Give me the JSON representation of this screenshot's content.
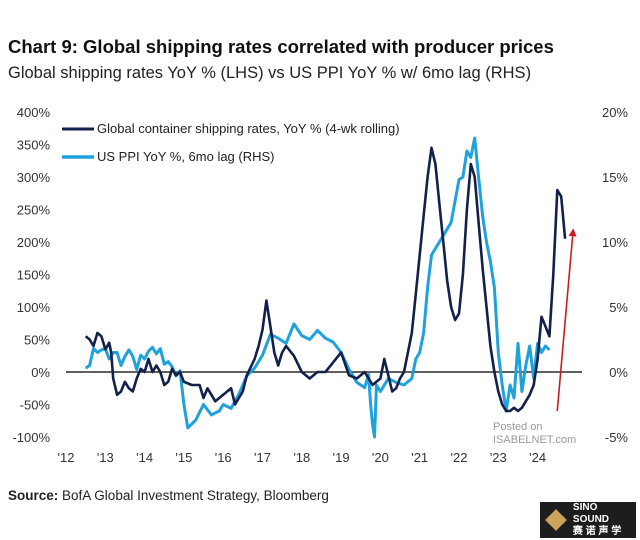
{
  "title": "Chart 9: Global shipping rates correlated with producer prices",
  "subtitle": "Global shipping rates YoY % (LHS) vs US PPI YoY % w/ 6mo lag (RHS)",
  "source_label": "Source:",
  "source_text": "BofA Global Investment Strategy, Bloomberg",
  "watermark_line1": "Posted on",
  "watermark_line2": "ISABELNET.com",
  "logo_text_1": "SINO SOUND",
  "logo_text_2": "赛 诺 声 学",
  "colors": {
    "shipping": "#13204a",
    "ppi": "#1fa2dc",
    "arrow": "#c81e1e",
    "zero": "#000000"
  },
  "chart_data": {
    "type": "line",
    "left_axis": {
      "min": -100,
      "max": 400,
      "ticks": [
        "400%",
        "350%",
        "300%",
        "250%",
        "200%",
        "150%",
        "100%",
        "50%",
        "0%",
        "-50%",
        "-100%"
      ]
    },
    "right_axis": {
      "min": -5,
      "max": 20,
      "ticks": [
        "20%",
        "15%",
        "10%",
        "5%",
        "0%",
        "-5%"
      ]
    },
    "x_axis": {
      "min": 2012,
      "max": 2024.8,
      "ticks": [
        "'12",
        "'13",
        "'14",
        "'15",
        "'16",
        "'17",
        "'18",
        "'19",
        "'20",
        "'21",
        "'22",
        "'23",
        "'24"
      ]
    },
    "series": [
      {
        "name": "Global container shipping rates, YoY % (4-wk rolling)",
        "axis": "left",
        "x": [
          2012.5,
          2012.6,
          2012.7,
          2012.8,
          2012.9,
          2013.0,
          2013.1,
          2013.15,
          2013.2,
          2013.3,
          2013.4,
          2013.5,
          2013.6,
          2013.7,
          2013.8,
          2013.9,
          2014.0,
          2014.1,
          2014.2,
          2014.3,
          2014.4,
          2014.5,
          2014.6,
          2014.7,
          2014.8,
          2014.9,
          2015.0,
          2015.2,
          2015.4,
          2015.5,
          2015.6,
          2015.8,
          2016.0,
          2016.2,
          2016.3,
          2016.5,
          2016.6,
          2016.8,
          2016.9,
          2017.0,
          2017.1,
          2017.2,
          2017.3,
          2017.4,
          2017.5,
          2017.6,
          2017.8,
          2018.0,
          2018.2,
          2018.4,
          2018.6,
          2018.8,
          2019.0,
          2019.2,
          2019.4,
          2019.6,
          2019.8,
          2020.0,
          2020.1,
          2020.2,
          2020.3,
          2020.4,
          2020.5,
          2020.6,
          2020.7,
          2020.8,
          2020.9,
          2021.0,
          2021.1,
          2021.2,
          2021.3,
          2021.4,
          2021.5,
          2021.6,
          2021.7,
          2021.8,
          2021.9,
          2022.0,
          2022.1,
          2022.2,
          2022.3,
          2022.4,
          2022.5,
          2022.6,
          2022.7,
          2022.8,
          2022.9,
          2023.0,
          2023.1,
          2023.2,
          2023.3,
          2023.4,
          2023.5,
          2023.6,
          2023.7,
          2023.8,
          2023.9,
          2024.0,
          2024.1,
          2024.2,
          2024.3,
          2024.4,
          2024.5,
          2024.6,
          2024.7
        ],
        "values": [
          55,
          50,
          40,
          60,
          55,
          35,
          45,
          30,
          -10,
          -35,
          -30,
          -15,
          -25,
          -30,
          -10,
          5,
          0,
          20,
          0,
          10,
          0,
          -20,
          -15,
          5,
          -5,
          0,
          -15,
          -20,
          -20,
          -40,
          -25,
          -45,
          -35,
          -25,
          -50,
          -30,
          -5,
          20,
          40,
          65,
          110,
          70,
          30,
          10,
          30,
          40,
          25,
          0,
          -10,
          0,
          0,
          15,
          30,
          -5,
          -10,
          0,
          -20,
          -10,
          20,
          -5,
          -30,
          -25,
          -10,
          0,
          30,
          60,
          120,
          180,
          240,
          300,
          345,
          320,
          260,
          200,
          140,
          100,
          80,
          90,
          150,
          250,
          320,
          300,
          230,
          160,
          100,
          40,
          0,
          -30,
          -50,
          -60,
          -60,
          -55,
          -60,
          -55,
          -45,
          -35,
          -20,
          20,
          85,
          70,
          55,
          150,
          280,
          270,
          205
        ]
      },
      {
        "name": "US PPI YoY %, 6mo lag (RHS)",
        "axis": "right",
        "x": [
          2012.5,
          2012.6,
          2012.7,
          2012.8,
          2012.9,
          2013.0,
          2013.1,
          2013.2,
          2013.3,
          2013.4,
          2013.5,
          2013.6,
          2013.7,
          2013.8,
          2013.9,
          2014.0,
          2014.1,
          2014.2,
          2014.3,
          2014.4,
          2014.5,
          2014.6,
          2014.7,
          2014.8,
          2014.9,
          2015.0,
          2015.1,
          2015.3,
          2015.5,
          2015.7,
          2015.9,
          2016.0,
          2016.2,
          2016.4,
          2016.6,
          2016.8,
          2017.0,
          2017.2,
          2017.4,
          2017.6,
          2017.8,
          2018.0,
          2018.2,
          2018.4,
          2018.6,
          2018.8,
          2019.0,
          2019.2,
          2019.4,
          2019.6,
          2019.7,
          2019.75,
          2019.8,
          2019.85,
          2019.9,
          2020.0,
          2020.2,
          2020.4,
          2020.6,
          2020.8,
          2020.9,
          2021.0,
          2021.1,
          2021.2,
          2021.3,
          2021.4,
          2021.6,
          2021.8,
          2022.0,
          2022.1,
          2022.2,
          2022.3,
          2022.4,
          2022.5,
          2022.6,
          2022.7,
          2022.8,
          2022.9,
          2023.0,
          2023.1,
          2023.2,
          2023.3,
          2023.4,
          2023.5,
          2023.6,
          2023.7,
          2023.8,
          2023.9,
          2024.0,
          2024.1,
          2024.2,
          2024.3
        ],
        "values": [
          0.3,
          0.5,
          1.8,
          1.5,
          1.7,
          1.8,
          1.0,
          1.5,
          1.5,
          0.5,
          1.2,
          1.7,
          1.2,
          0.2,
          1.3,
          1.0,
          1.6,
          1.9,
          1.4,
          1.8,
          0.6,
          0.8,
          0.4,
          -0.3,
          0.1,
          -2.5,
          -4.3,
          -3.7,
          -2.5,
          -3.3,
          -3.0,
          -2.5,
          -2.8,
          -1.7,
          -0.3,
          0.3,
          1.3,
          2.9,
          2.6,
          2.2,
          3.7,
          2.8,
          2.5,
          3.2,
          2.6,
          2.3,
          1.5,
          0.2,
          -0.8,
          -1.2,
          -0.2,
          -2.5,
          -4.0,
          -5.0,
          -1.0,
          -1.5,
          -0.5,
          -0.8,
          -1.0,
          -0.5,
          1.0,
          1.5,
          3.0,
          6.5,
          9.0,
          9.5,
          10.5,
          11.5,
          14.8,
          15.0,
          17.0,
          16.5,
          18.0,
          15.0,
          12.0,
          10.0,
          8.5,
          6.5,
          1.5,
          -1.0,
          -3.0,
          -1.0,
          -2.0,
          2.2,
          -1.5,
          0.5,
          2.0,
          -0.5,
          2.2,
          1.5,
          2.0,
          1.7
        ]
      }
    ],
    "annotation": {
      "type": "arrow",
      "from": {
        "x": 2024.5,
        "y_left": -60
      },
      "to": {
        "x": 2024.9,
        "y_left": 215
      }
    }
  }
}
